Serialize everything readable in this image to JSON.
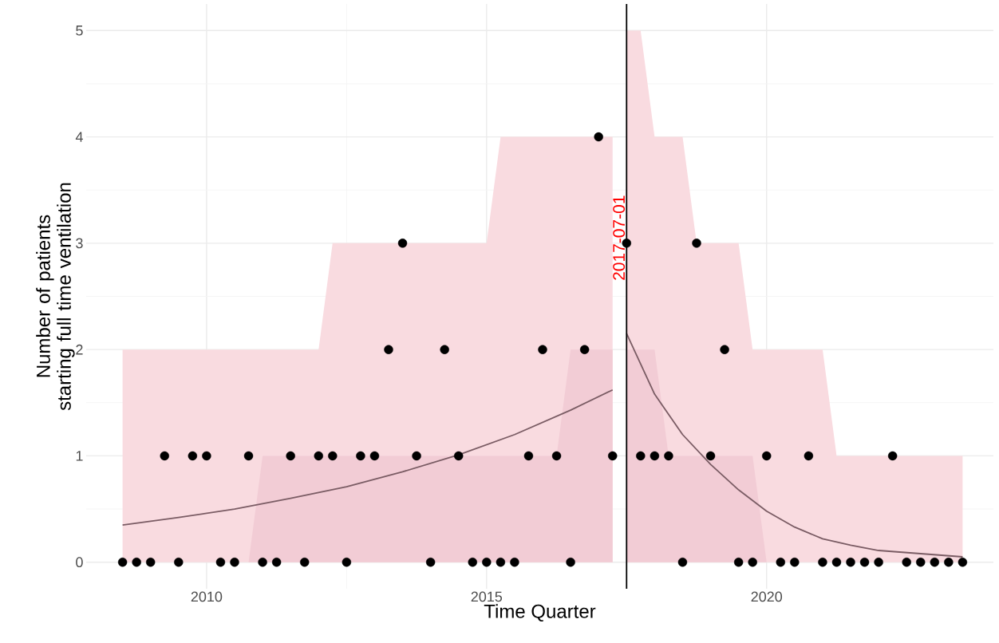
{
  "chart_data": {
    "type": "scatter",
    "xlabel": "Time Quarter",
    "ylabel": "Number of patients starting full time ventilation",
    "xlim": [
      2007.85,
      2024.05
    ],
    "ylim": [
      -0.25,
      5.25
    ],
    "xticks": [
      2010,
      2015,
      2020
    ],
    "yticks": [
      0,
      1,
      2,
      3,
      4,
      5
    ],
    "grid": true,
    "ref_lines": [
      {
        "axis": "x",
        "value": 2017.5,
        "label": "2017-07-01",
        "color": "#000000"
      }
    ],
    "series": [
      {
        "type": "area",
        "color": "#f9dbe0",
        "x": [
          2008.5,
          2008.75,
          2009,
          2009.25,
          2009.5,
          2009.75,
          2010,
          2010.25,
          2010.5,
          2010.75,
          2011,
          2011.25,
          2011.5,
          2011.75,
          2012,
          2012.25,
          2012.5,
          2012.75,
          2013,
          2013.25,
          2013.5,
          2013.75,
          2014,
          2014.25,
          2014.5,
          2014.75,
          2015,
          2015.25,
          2015.5,
          2015.75,
          2016,
          2016.25,
          2016.5,
          2016.75,
          2017,
          2017.25
        ],
        "values": [
          2,
          2,
          2,
          2,
          2,
          2,
          2,
          2,
          2,
          2,
          2,
          2,
          2,
          2,
          2,
          3,
          3,
          3,
          3,
          3,
          3,
          3,
          3,
          3,
          3,
          3,
          3,
          4,
          4,
          4,
          4,
          4,
          4,
          4,
          4,
          4
        ]
      },
      {
        "type": "area",
        "color": "#f2ccd5",
        "x": [
          2008.5,
          2008.75,
          2009,
          2009.25,
          2009.5,
          2009.75,
          2010,
          2010.25,
          2010.5,
          2010.75,
          2011,
          2011.25,
          2011.5,
          2011.75,
          2012,
          2012.25,
          2012.5,
          2012.75,
          2013,
          2013.25,
          2013.5,
          2013.75,
          2014,
          2014.25,
          2014.5,
          2014.75,
          2015,
          2015.25,
          2015.5,
          2015.75,
          2016,
          2016.25,
          2016.5,
          2016.75,
          2017,
          2017.25
        ],
        "values": [
          0,
          0,
          0,
          0,
          0,
          0,
          0,
          0,
          0,
          0,
          1,
          1,
          1,
          1,
          1,
          1,
          1,
          1,
          1,
          1,
          1,
          1,
          1,
          1,
          1,
          1,
          1,
          1,
          1,
          1,
          1,
          1,
          2,
          2,
          2,
          2
        ]
      },
      {
        "type": "area",
        "color": "#f9dbe0",
        "x": [
          2017.5,
          2017.75,
          2018,
          2018.25,
          2018.5,
          2018.75,
          2019,
          2019.25,
          2019.5,
          2019.75,
          2020,
          2020.25,
          2020.5,
          2020.75,
          2021,
          2021.25,
          2021.5,
          2021.75,
          2022,
          2022.25,
          2022.5,
          2022.75,
          2023,
          2023.25,
          2023.5
        ],
        "values": [
          5,
          5,
          4,
          4,
          4,
          3,
          3,
          3,
          3,
          2,
          2,
          2,
          2,
          2,
          2,
          1,
          1,
          1,
          1,
          1,
          1,
          1,
          1,
          1,
          1
        ]
      },
      {
        "type": "area",
        "color": "#f2ccd5",
        "x": [
          2017.5,
          2017.75,
          2018,
          2018.25,
          2018.5,
          2018.75,
          2019,
          2019.25,
          2019.5,
          2019.75,
          2020,
          2020.25,
          2020.5,
          2020.75,
          2021,
          2021.25,
          2021.5,
          2021.75,
          2022,
          2022.25,
          2022.5,
          2022.75,
          2023,
          2023.25,
          2023.5
        ],
        "values": [
          2,
          2,
          2,
          1,
          1,
          1,
          1,
          1,
          1,
          1,
          0,
          0,
          0,
          0,
          0,
          0,
          0,
          0,
          0,
          0,
          0,
          0,
          0,
          0,
          0
        ]
      },
      {
        "type": "line",
        "color": "#7a5c64",
        "x": [
          2008.5,
          2009.5,
          2010.5,
          2011.5,
          2012.5,
          2013.5,
          2014.5,
          2015.5,
          2016.5,
          2017.25
        ],
        "values": [
          0.35,
          0.42,
          0.5,
          0.6,
          0.71,
          0.85,
          1.01,
          1.2,
          1.43,
          1.62
        ]
      },
      {
        "type": "line",
        "color": "#7a5c64",
        "x": [
          2017.5,
          2018,
          2018.5,
          2019,
          2019.5,
          2020,
          2020.5,
          2021,
          2021.5,
          2022,
          2022.75,
          2023.5
        ],
        "values": [
          2.15,
          1.58,
          1.2,
          0.92,
          0.68,
          0.48,
          0.33,
          0.22,
          0.16,
          0.11,
          0.08,
          0.05
        ]
      },
      {
        "marker": "circle",
        "color": "#000000",
        "x": [
          2008.5,
          2008.75,
          2009,
          2009.25,
          2009.5,
          2009.75,
          2010,
          2010.25,
          2010.5,
          2010.75,
          2011,
          2011.25,
          2011.5,
          2011.75,
          2012,
          2012.25,
          2012.5,
          2012.75,
          2013,
          2013.25,
          2013.5,
          2013.75,
          2014,
          2014.25,
          2014.5,
          2014.75,
          2015,
          2015.25,
          2015.5,
          2015.75,
          2016,
          2016.25,
          2016.5,
          2016.75,
          2017,
          2017.25,
          2017.5,
          2017.75,
          2018,
          2018.25,
          2018.5,
          2018.75,
          2019,
          2019.25,
          2019.5,
          2019.75,
          2020,
          2020.25,
          2020.5,
          2020.75,
          2021,
          2021.25,
          2021.5,
          2021.75,
          2022,
          2022.25,
          2022.5,
          2022.75,
          2023,
          2023.25,
          2023.5
        ],
        "values": [
          0,
          0,
          0,
          1,
          0,
          1,
          1,
          0,
          0,
          1,
          0,
          0,
          1,
          0,
          1,
          1,
          0,
          1,
          1,
          2,
          3,
          1,
          0,
          2,
          1,
          0,
          0,
          0,
          0,
          1,
          2,
          1,
          0,
          2,
          4,
          1,
          3,
          1,
          1,
          1,
          0,
          3,
          1,
          2,
          0,
          0,
          1,
          0,
          0,
          1,
          0,
          0,
          0,
          0,
          0,
          1,
          0,
          0,
          0,
          0,
          0
        ]
      }
    ]
  }
}
